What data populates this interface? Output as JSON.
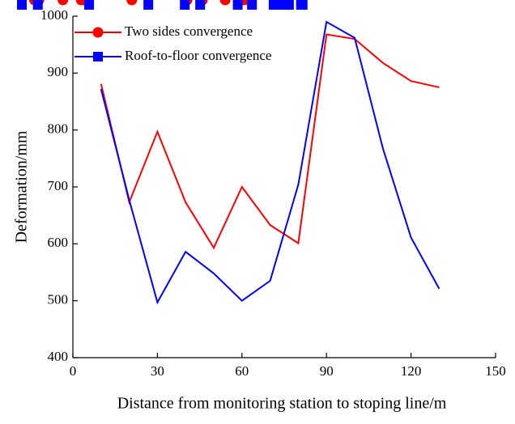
{
  "chart_data": {
    "type": "line",
    "xlabel": "Distance from monitoring station to stoping line/m",
    "ylabel": "Deformation/mm",
    "x": [
      10,
      20,
      30,
      40,
      50,
      60,
      70,
      80,
      90,
      100,
      110,
      120,
      130
    ],
    "series": [
      {
        "name": "Two sides convergence",
        "color": "#ff0000",
        "marker": "circle",
        "values": [
          881,
          673,
          797,
          673,
          593,
          700,
          633,
          601,
          968,
          960,
          918,
          886,
          875
        ]
      },
      {
        "name": "Roof-to-floor convergence",
        "color": "#0000ff",
        "marker": "square",
        "values": [
          872,
          677,
          497,
          586,
          548,
          500,
          535,
          704,
          990,
          962,
          768,
          611,
          521
        ]
      }
    ],
    "xlim": [
      0,
      150
    ],
    "xticks": [
      0,
      30,
      60,
      90,
      120,
      150
    ],
    "ylim": [
      400,
      1000
    ],
    "yticks": [
      400,
      500,
      600,
      700,
      800,
      900,
      1000
    ],
    "legend": "upper left"
  }
}
